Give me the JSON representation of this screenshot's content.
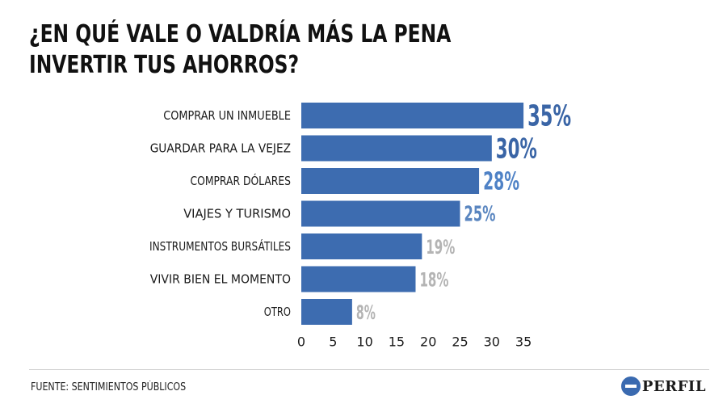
{
  "chart_data": {
    "type": "bar",
    "orientation": "horizontal",
    "title_lines": [
      "¿EN QUÉ VALE O VALDRÍA MÁS LA PENA",
      "INVERTIR TUS AHORROS?"
    ],
    "categories": [
      "COMPRAR UN INMUEBLE",
      "GUARDAR PARA LA VEJEZ",
      "COMPRAR DÓLARES",
      "VIAJES Y TURISMO",
      "INSTRUMENTOS BURSÁTILES",
      "VIVIR BIEN EL MOMENTO",
      "OTRO"
    ],
    "values": [
      35,
      30,
      28,
      25,
      19,
      18,
      8
    ],
    "value_labels": [
      "35%",
      "30%",
      "28%",
      "25%",
      "19%",
      "18%",
      "8%"
    ],
    "value_label_colors": [
      "#3a65a6",
      "#3a65a6",
      "#4f82c6",
      "#5a86c0",
      "#b4b4b4",
      "#b4b4b4",
      "#b4b4b4"
    ],
    "value_label_sizes": [
      36,
      34,
      30,
      26,
      24,
      24,
      24
    ],
    "xticks": [
      0,
      5,
      10,
      15,
      20,
      25,
      30,
      35
    ],
    "xlim": [
      0,
      35
    ],
    "bar_color": "#3d6cb0",
    "grid": false,
    "legend": "none"
  },
  "footer": {
    "source": "FUENTE: SENTIMIENTOS PÚBLICOS",
    "logo_text": "PERFIL"
  }
}
